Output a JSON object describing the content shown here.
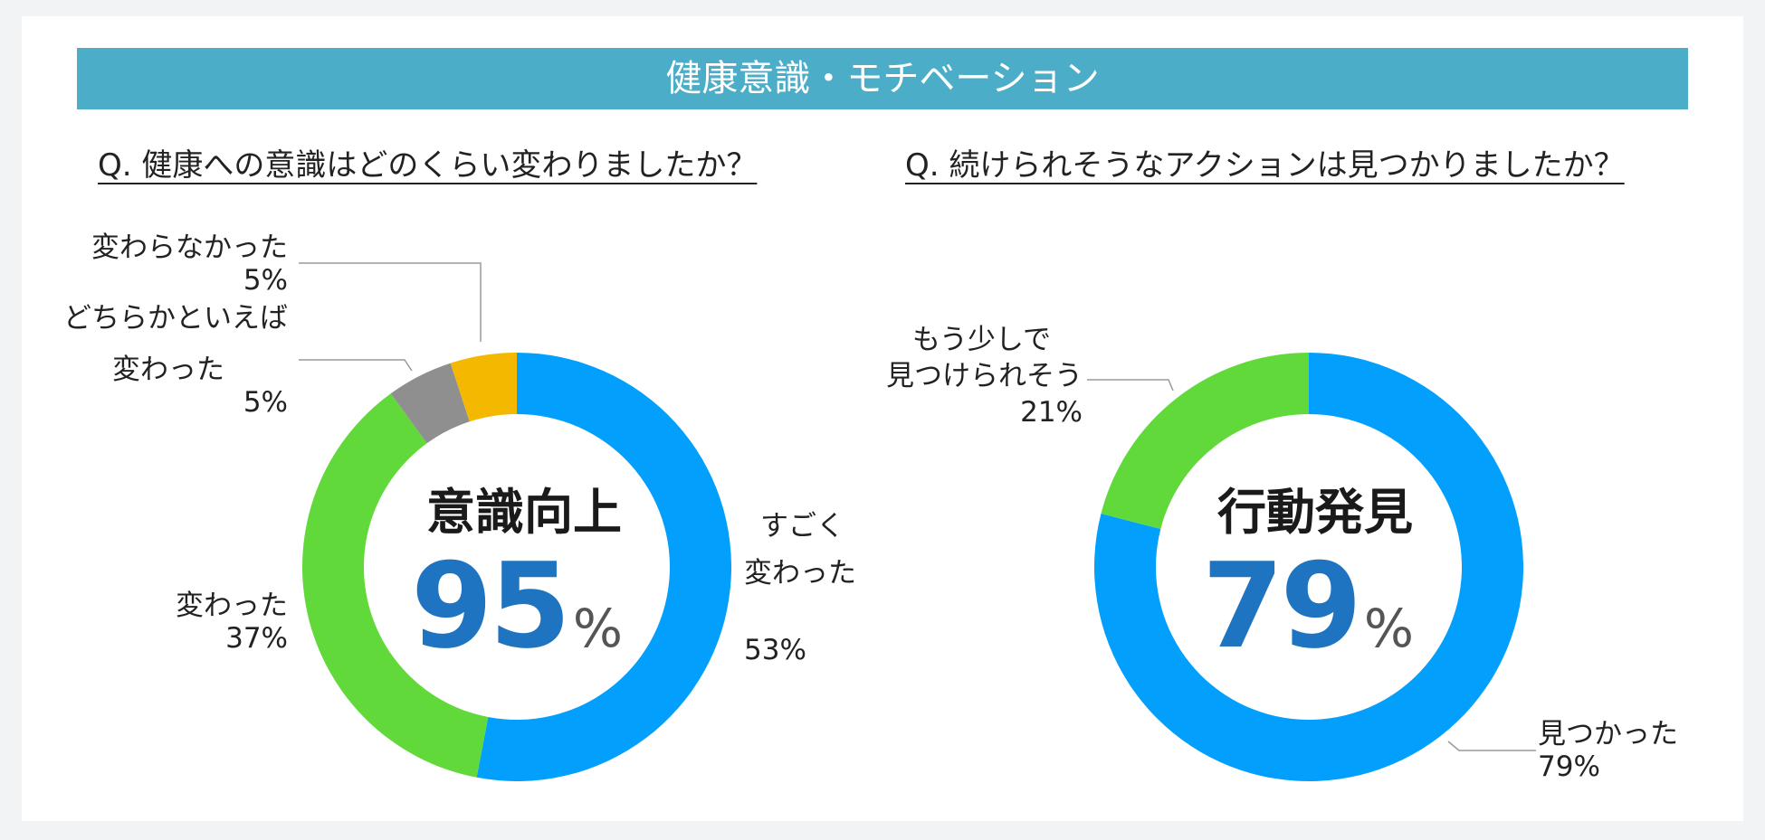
{
  "banner": {
    "title": "健康意識・モチベーション"
  },
  "colors": {
    "blue": "#02a0fc",
    "green": "#62d93a",
    "gray": "#8f8f8f",
    "orange": "#f5b800",
    "number": "#1e74c0",
    "leader": "#9a9a9a"
  },
  "chart_data": [
    {
      "type": "pie",
      "title": "Q. 健康への意識はどのくらい変わりましたか？",
      "center_title": "意識向上",
      "center_value": "95",
      "center_unit": "%",
      "slices": [
        {
          "name": "すごく変わった",
          "value": 53,
          "color": "#02a0fc",
          "label_lines": [
            "すごく",
            "変わった"
          ],
          "pct_text": "53%"
        },
        {
          "name": "変わった",
          "value": 37,
          "color": "#62d93a",
          "label_lines": [
            "変わった"
          ],
          "pct_text": "37%"
        },
        {
          "name": "どちらかといえば変わった",
          "value": 5,
          "color": "#8f8f8f",
          "label_lines": [
            "どちらかといえば",
            "変わった"
          ],
          "pct_text": "5%"
        },
        {
          "name": "変わらなかった",
          "value": 5,
          "color": "#f5b800",
          "label_lines": [
            "変わらなかった"
          ],
          "pct_text": "5%"
        }
      ]
    },
    {
      "type": "pie",
      "title": "Q. 続けられそうなアクションは見つかりましたか？",
      "center_title": "行動発見",
      "center_value": "79",
      "center_unit": "%",
      "slices": [
        {
          "name": "見つかった",
          "value": 79,
          "color": "#02a0fc",
          "label_lines": [
            "見つかった"
          ],
          "pct_text": "79%"
        },
        {
          "name": "もう少しで見つけられそう",
          "value": 21,
          "color": "#62d93a",
          "label_lines": [
            "もう少しで",
            "見つけられそう"
          ],
          "pct_text": "21%"
        }
      ]
    }
  ]
}
